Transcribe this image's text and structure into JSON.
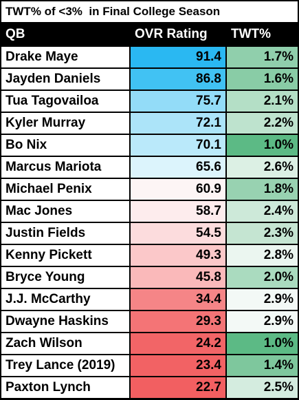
{
  "title": "TWT% of <3%  in Final College Season",
  "chart_data": {
    "type": "table",
    "title": "TWT% of <3%  in Final College Season",
    "columns": [
      "QB",
      "OVR Rating",
      "TWT%"
    ],
    "rows": [
      {
        "qb": "Drake Maye",
        "ovr": "91.4",
        "twt": "1.7%",
        "ovr_color": "#2ab8f2",
        "twt_color": "#90cfac"
      },
      {
        "qb": "Jayden Daniels",
        "ovr": "86.8",
        "twt": "1.6%",
        "ovr_color": "#41c2f3",
        "twt_color": "#89cca6"
      },
      {
        "qb": "Tua Tagovailoa",
        "ovr": "75.7",
        "twt": "2.1%",
        "ovr_color": "#93dcf8",
        "twt_color": "#b4dfc6"
      },
      {
        "qb": "Kyler Murray",
        "ovr": "72.1",
        "twt": "2.2%",
        "ovr_color": "#ace4f9",
        "twt_color": "#bee3ce"
      },
      {
        "qb": "Bo Nix",
        "ovr": "70.1",
        "twt": "1.0%",
        "ovr_color": "#bae9fa",
        "twt_color": "#5cba85"
      },
      {
        "qb": "Marcus Mariota",
        "ovr": "65.6",
        "twt": "2.6%",
        "ovr_color": "#dcf4fc",
        "twt_color": "#dcf0e4"
      },
      {
        "qb": "Michael Penix",
        "ovr": "60.9",
        "twt": "1.8%",
        "ovr_color": "#fdf5f5",
        "twt_color": "#98d2b1"
      },
      {
        "qb": "Mac Jones",
        "ovr": "58.7",
        "twt": "2.4%",
        "ovr_color": "#fdeced",
        "twt_color": "#cde9d9"
      },
      {
        "qb": "Justin Fields",
        "ovr": "54.5",
        "twt": "2.3%",
        "ovr_color": "#fcdcdd",
        "twt_color": "#c5e5d2"
      },
      {
        "qb": "Kenny Pickett",
        "ovr": "49.3",
        "twt": "2.8%",
        "ovr_color": "#fbc8c9",
        "twt_color": "#ebf6f0"
      },
      {
        "qb": "Bryce Young",
        "ovr": "45.8",
        "twt": "2.0%",
        "ovr_color": "#fab9ba",
        "twt_color": "#aadbbf"
      },
      {
        "qb": "J.J. McCarthy",
        "ovr": "34.4",
        "twt": "2.9%",
        "ovr_color": "#f58587",
        "twt_color": "#f3f9f6"
      },
      {
        "qb": "Dwayne Haskins",
        "ovr": "29.3",
        "twt": "2.9%",
        "ovr_color": "#f47476",
        "twt_color": "#f3f9f6"
      },
      {
        "qb": "Zach Wilson",
        "ovr": "24.2",
        "twt": "1.0%",
        "ovr_color": "#f26567",
        "twt_color": "#5cba85"
      },
      {
        "qb": "Trey Lance (2019)",
        "ovr": "23.4",
        "twt": "1.4%",
        "ovr_color": "#f26264",
        "twt_color": "#7ec79d"
      },
      {
        "qb": "Paxton Lynch",
        "ovr": "22.7",
        "twt": "2.5%",
        "ovr_color": "#f25f61",
        "twt_color": "#d4ecdf"
      }
    ]
  }
}
